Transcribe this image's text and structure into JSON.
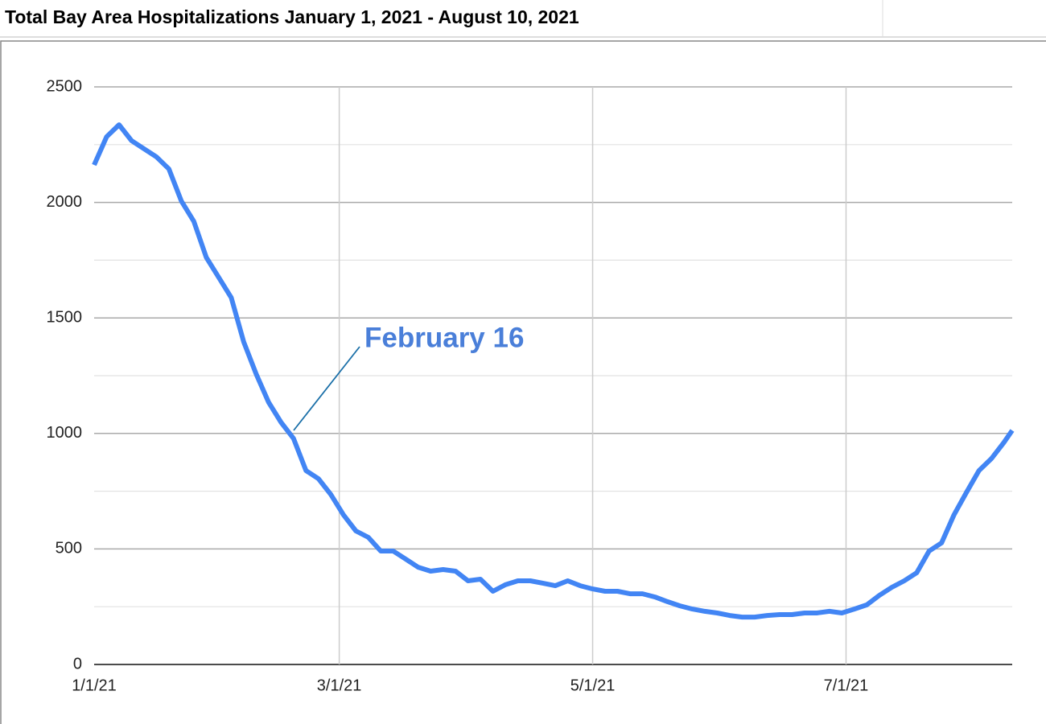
{
  "chart_data": {
    "type": "line",
    "title": "Total Bay Area Hospitalizations January 1, 2021 - August 10, 2021",
    "annotation": "February 16",
    "x": [
      "1/1/21",
      "1/4/21",
      "1/7/21",
      "1/10/21",
      "1/13/21",
      "1/16/21",
      "1/19/21",
      "1/22/21",
      "1/25/21",
      "1/28/21",
      "1/31/21",
      "2/3/21",
      "2/6/21",
      "2/9/21",
      "2/12/21",
      "2/15/21",
      "2/18/21",
      "2/21/21",
      "2/24/21",
      "2/27/21",
      "3/2/21",
      "3/5/21",
      "3/8/21",
      "3/11/21",
      "3/14/21",
      "3/17/21",
      "3/20/21",
      "3/23/21",
      "3/26/21",
      "3/29/21",
      "4/1/21",
      "4/4/21",
      "4/7/21",
      "4/10/21",
      "4/13/21",
      "4/16/21",
      "4/19/21",
      "4/22/21",
      "4/25/21",
      "4/28/21",
      "5/1/21",
      "5/4/21",
      "5/7/21",
      "5/10/21",
      "5/13/21",
      "5/16/21",
      "5/19/21",
      "5/22/21",
      "5/25/21",
      "5/28/21",
      "5/31/21",
      "6/3/21",
      "6/6/21",
      "6/9/21",
      "6/12/21",
      "6/15/21",
      "6/18/21",
      "6/21/21",
      "6/24/21",
      "6/27/21",
      "6/30/21",
      "7/3/21",
      "7/6/21",
      "7/9/21",
      "7/12/21",
      "7/15/21",
      "7/18/21",
      "7/21/21",
      "7/24/21",
      "7/27/21",
      "7/30/21",
      "8/2/21",
      "8/5/21",
      "8/8/21",
      "8/10/21"
    ],
    "series": [
      {
        "name": "Hospitalizations",
        "color": "#4285f4",
        "values": [
          2162,
          2284,
          2336,
          2267,
          2232,
          2197,
          2145,
          2006,
          1918,
          1762,
          1675,
          1588,
          1396,
          1257,
          1135,
          1048,
          978,
          839,
          804,
          735,
          648,
          578,
          550,
          491,
          491,
          456,
          421,
          404,
          411,
          404,
          362,
          369,
          317,
          345,
          362,
          362,
          352,
          341,
          362,
          341,
          327,
          317,
          317,
          306,
          306,
          292,
          272,
          254,
          240,
          230,
          223,
          212,
          205,
          205,
          212,
          216,
          216,
          223,
          223,
          230,
          223,
          240,
          258,
          299,
          334,
          362,
          397,
          491,
          526,
          648,
          745,
          839,
          891,
          961,
          1013
        ]
      }
    ],
    "xlim": [
      "1/1/21",
      "8/10/21"
    ],
    "xticks": [
      "1/1/21",
      "3/1/21",
      "5/1/21",
      "7/1/21"
    ],
    "ylim": [
      0,
      2500
    ],
    "yticks": [
      0,
      500,
      1000,
      1500,
      2000,
      2500
    ],
    "grid": true
  }
}
